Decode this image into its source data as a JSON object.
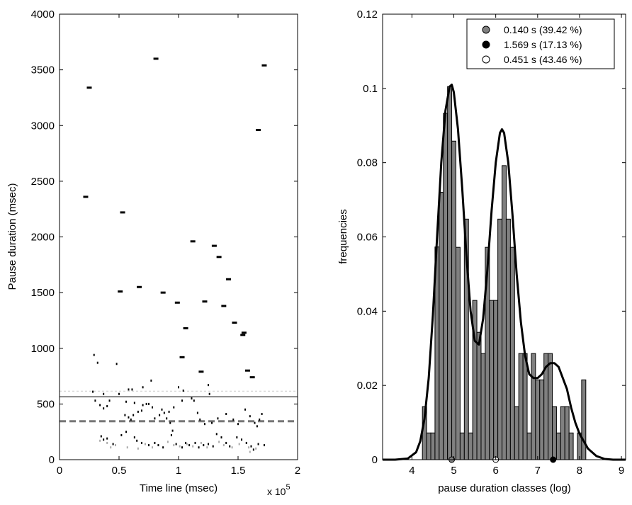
{
  "chart_data": [
    {
      "type": "scatter",
      "title": "",
      "xlabel": "Time line (msec)",
      "ylabel": "Pause duration (msec)",
      "x_exponent_label": "x 10",
      "x_exponent_power": "5",
      "xlim": [
        0,
        2
      ],
      "ylim": [
        0,
        4000
      ],
      "xticks": [
        0,
        0.5,
        1,
        1.5,
        2
      ],
      "xtick_labels": [
        "0",
        "0.5",
        "1",
        "1.5",
        "2"
      ],
      "yticks": [
        0,
        500,
        1000,
        1500,
        2000,
        2500,
        3000,
        3500,
        4000
      ],
      "ytick_labels": [
        "0",
        "500",
        "1000",
        "1500",
        "2000",
        "2500",
        "3000",
        "3500",
        "4000"
      ],
      "grid": false,
      "reference_lines": [
        {
          "style": "solid",
          "color": "#000000",
          "y": 565
        },
        {
          "style": "dashed",
          "color": "#777777",
          "y": 345
        },
        {
          "style": "dotted",
          "color": "#cccccc",
          "y": 615
        }
      ],
      "series": [
        {
          "color": "#000000",
          "points": [
            {
              "x": 0.22,
              "y": 2360
            },
            {
              "x": 0.25,
              "y": 3340
            },
            {
              "x": 0.53,
              "y": 2220
            },
            {
              "x": 0.81,
              "y": 3600
            },
            {
              "x": 1.67,
              "y": 2960
            },
            {
              "x": 1.72,
              "y": 3540
            },
            {
              "x": 1.12,
              "y": 1960
            },
            {
              "x": 1.3,
              "y": 1920
            },
            {
              "x": 1.34,
              "y": 1820
            },
            {
              "x": 1.42,
              "y": 1620
            },
            {
              "x": 0.51,
              "y": 1510
            },
            {
              "x": 0.67,
              "y": 1550
            },
            {
              "x": 0.87,
              "y": 1500
            },
            {
              "x": 0.99,
              "y": 1410
            },
            {
              "x": 1.22,
              "y": 1420
            },
            {
              "x": 1.38,
              "y": 1380
            },
            {
              "x": 1.47,
              "y": 1230
            },
            {
              "x": 1.06,
              "y": 1180
            },
            {
              "x": 1.54,
              "y": 1120
            },
            {
              "x": 1.55,
              "y": 1140
            },
            {
              "x": 1.03,
              "y": 920
            },
            {
              "x": 1.19,
              "y": 790
            },
            {
              "x": 1.58,
              "y": 800
            },
            {
              "x": 1.62,
              "y": 740
            }
          ]
        },
        {
          "color": "#000000",
          "points": [
            {
              "x": 0.29,
              "y": 940
            },
            {
              "x": 0.32,
              "y": 870
            },
            {
              "x": 0.48,
              "y": 860
            },
            {
              "x": 0.28,
              "y": 610
            },
            {
              "x": 0.37,
              "y": 590
            },
            {
              "x": 0.58,
              "y": 630
            },
            {
              "x": 0.61,
              "y": 630
            },
            {
              "x": 0.7,
              "y": 650
            },
            {
              "x": 0.77,
              "y": 710
            },
            {
              "x": 1.0,
              "y": 650
            },
            {
              "x": 1.04,
              "y": 620
            },
            {
              "x": 1.25,
              "y": 670
            },
            {
              "x": 1.26,
              "y": 590
            },
            {
              "x": 0.3,
              "y": 530
            },
            {
              "x": 0.34,
              "y": 490
            },
            {
              "x": 0.37,
              "y": 460
            },
            {
              "x": 0.4,
              "y": 480
            },
            {
              "x": 0.42,
              "y": 530
            },
            {
              "x": 0.5,
              "y": 590
            },
            {
              "x": 0.56,
              "y": 520
            },
            {
              "x": 0.63,
              "y": 510
            },
            {
              "x": 0.7,
              "y": 490
            },
            {
              "x": 0.73,
              "y": 500
            },
            {
              "x": 0.75,
              "y": 500
            },
            {
              "x": 0.78,
              "y": 470
            },
            {
              "x": 0.86,
              "y": 450
            },
            {
              "x": 0.88,
              "y": 420
            },
            {
              "x": 0.92,
              "y": 430
            },
            {
              "x": 0.96,
              "y": 470
            },
            {
              "x": 1.03,
              "y": 530
            },
            {
              "x": 1.11,
              "y": 550
            },
            {
              "x": 1.13,
              "y": 530
            },
            {
              "x": 0.55,
              "y": 400
            },
            {
              "x": 0.58,
              "y": 380
            },
            {
              "x": 0.6,
              "y": 360
            },
            {
              "x": 0.62,
              "y": 400
            },
            {
              "x": 0.66,
              "y": 430
            },
            {
              "x": 0.69,
              "y": 440
            },
            {
              "x": 0.8,
              "y": 370
            },
            {
              "x": 0.84,
              "y": 400
            },
            {
              "x": 0.9,
              "y": 370
            },
            {
              "x": 0.93,
              "y": 330
            },
            {
              "x": 0.95,
              "y": 260
            },
            {
              "x": 0.94,
              "y": 220
            },
            {
              "x": 1.16,
              "y": 420
            },
            {
              "x": 1.18,
              "y": 360
            },
            {
              "x": 1.22,
              "y": 320
            },
            {
              "x": 1.28,
              "y": 330
            },
            {
              "x": 1.33,
              "y": 370
            },
            {
              "x": 1.4,
              "y": 410
            },
            {
              "x": 1.46,
              "y": 360
            },
            {
              "x": 1.5,
              "y": 320
            },
            {
              "x": 1.56,
              "y": 450
            },
            {
              "x": 1.6,
              "y": 390
            },
            {
              "x": 1.64,
              "y": 330
            },
            {
              "x": 1.66,
              "y": 300
            },
            {
              "x": 1.68,
              "y": 360
            },
            {
              "x": 1.7,
              "y": 410
            },
            {
              "x": 0.35,
              "y": 210
            },
            {
              "x": 0.37,
              "y": 180
            },
            {
              "x": 0.4,
              "y": 190
            },
            {
              "x": 0.45,
              "y": 140
            },
            {
              "x": 0.52,
              "y": 220
            },
            {
              "x": 0.56,
              "y": 250
            },
            {
              "x": 0.63,
              "y": 200
            },
            {
              "x": 0.65,
              "y": 170
            },
            {
              "x": 0.69,
              "y": 150
            },
            {
              "x": 0.75,
              "y": 130
            },
            {
              "x": 0.8,
              "y": 150
            },
            {
              "x": 0.83,
              "y": 130
            },
            {
              "x": 0.87,
              "y": 110
            },
            {
              "x": 0.98,
              "y": 140
            },
            {
              "x": 1.03,
              "y": 110
            },
            {
              "x": 1.06,
              "y": 150
            },
            {
              "x": 1.09,
              "y": 130
            },
            {
              "x": 1.14,
              "y": 150
            },
            {
              "x": 1.17,
              "y": 110
            },
            {
              "x": 1.21,
              "y": 130
            },
            {
              "x": 1.25,
              "y": 140
            },
            {
              "x": 1.29,
              "y": 120
            },
            {
              "x": 1.32,
              "y": 230
            },
            {
              "x": 1.36,
              "y": 200
            },
            {
              "x": 1.4,
              "y": 150
            },
            {
              "x": 1.43,
              "y": 120
            },
            {
              "x": 1.49,
              "y": 200
            },
            {
              "x": 1.53,
              "y": 180
            },
            {
              "x": 1.57,
              "y": 150
            },
            {
              "x": 1.61,
              "y": 120
            },
            {
              "x": 1.63,
              "y": 90
            },
            {
              "x": 1.67,
              "y": 140
            },
            {
              "x": 1.72,
              "y": 130
            }
          ]
        },
        {
          "color": "#aaaaaa",
          "points": [
            {
              "x": 0.4,
              "y": 150
            },
            {
              "x": 0.43,
              "y": 110
            },
            {
              "x": 0.47,
              "y": 130
            },
            {
              "x": 0.57,
              "y": 110
            },
            {
              "x": 0.66,
              "y": 100
            },
            {
              "x": 0.72,
              "y": 140
            },
            {
              "x": 0.78,
              "y": 110
            },
            {
              "x": 0.91,
              "y": 160
            },
            {
              "x": 0.96,
              "y": 130
            },
            {
              "x": 1.01,
              "y": 120
            },
            {
              "x": 1.07,
              "y": 140
            },
            {
              "x": 1.12,
              "y": 120
            },
            {
              "x": 1.19,
              "y": 150
            },
            {
              "x": 1.24,
              "y": 110
            },
            {
              "x": 1.34,
              "y": 160
            },
            {
              "x": 1.38,
              "y": 130
            },
            {
              "x": 1.45,
              "y": 110
            },
            {
              "x": 1.51,
              "y": 140
            },
            {
              "x": 1.59,
              "y": 110
            },
            {
              "x": 1.65,
              "y": 100
            },
            {
              "x": 1.6,
              "y": 70
            },
            {
              "x": 0.34,
              "y": 170
            }
          ]
        }
      ]
    },
    {
      "type": "bar",
      "title": "",
      "xlabel": "pause duration classes (log)",
      "ylabel": "frequencies",
      "xlim": [
        3.3,
        9.1
      ],
      "ylim": [
        0,
        0.12
      ],
      "xticks": [
        4,
        5,
        6,
        7,
        8,
        9
      ],
      "xtick_labels": [
        "4",
        "5",
        "6",
        "7",
        "8",
        "9"
      ],
      "yticks": [
        0,
        0.02,
        0.04,
        0.06,
        0.08,
        0.1,
        0.12
      ],
      "ytick_labels": [
        "0",
        "0.02",
        "0.04",
        "0.06",
        "0.08",
        "0.1",
        "0.12"
      ],
      "grid": false,
      "bar_width": 0.1,
      "bar_color": "#808080",
      "bars": [
        {
          "x": 4.3,
          "y": 0.0143
        },
        {
          "x": 4.4,
          "y": 0.0072
        },
        {
          "x": 4.5,
          "y": 0.0072
        },
        {
          "x": 4.6,
          "y": 0.0573
        },
        {
          "x": 4.7,
          "y": 0.072
        },
        {
          "x": 4.8,
          "y": 0.0933
        },
        {
          "x": 4.9,
          "y": 0.1005
        },
        {
          "x": 5.0,
          "y": 0.0858
        },
        {
          "x": 5.1,
          "y": 0.0572
        },
        {
          "x": 5.2,
          "y": 0.0072
        },
        {
          "x": 5.3,
          "y": 0.0648
        },
        {
          "x": 5.4,
          "y": 0.0072
        },
        {
          "x": 5.5,
          "y": 0.0429
        },
        {
          "x": 5.6,
          "y": 0.0343
        },
        {
          "x": 5.7,
          "y": 0.0286
        },
        {
          "x": 5.8,
          "y": 0.0572
        },
        {
          "x": 5.9,
          "y": 0.0429
        },
        {
          "x": 6.0,
          "y": 0.0429
        },
        {
          "x": 6.1,
          "y": 0.0648
        },
        {
          "x": 6.2,
          "y": 0.0792
        },
        {
          "x": 6.3,
          "y": 0.0648
        },
        {
          "x": 6.4,
          "y": 0.0572
        },
        {
          "x": 6.5,
          "y": 0.0143
        },
        {
          "x": 6.6,
          "y": 0.0286
        },
        {
          "x": 6.7,
          "y": 0.0286
        },
        {
          "x": 6.8,
          "y": 0.0072
        },
        {
          "x": 6.9,
          "y": 0.0286
        },
        {
          "x": 7.0,
          "y": 0.0215
        },
        {
          "x": 7.1,
          "y": 0.0215
        },
        {
          "x": 7.2,
          "y": 0.0286
        },
        {
          "x": 7.3,
          "y": 0.0286
        },
        {
          "x": 7.4,
          "y": 0.0143
        },
        {
          "x": 7.5,
          "y": 0.0072
        },
        {
          "x": 7.6,
          "y": 0.0143
        },
        {
          "x": 7.7,
          "y": 0.0143
        },
        {
          "x": 7.8,
          "y": 0.0072
        },
        {
          "x": 8.0,
          "y": 0.0072
        },
        {
          "x": 8.1,
          "y": 0.0215
        }
      ],
      "density_curve": {
        "color": "#000000",
        "x": [
          3.3,
          3.6,
          3.9,
          4.1,
          4.2,
          4.3,
          4.4,
          4.5,
          4.6,
          4.7,
          4.8,
          4.9,
          4.95,
          5.0,
          5.1,
          5.2,
          5.3,
          5.4,
          5.5,
          5.6,
          5.7,
          5.8,
          5.9,
          6.0,
          6.1,
          6.15,
          6.2,
          6.3,
          6.4,
          6.5,
          6.6,
          6.7,
          6.8,
          6.9,
          7.0,
          7.1,
          7.2,
          7.3,
          7.4,
          7.5,
          7.6,
          7.7,
          7.8,
          7.9,
          8.0,
          8.2,
          8.4,
          8.6,
          8.8,
          9.1
        ],
        "y": [
          0,
          0,
          0.0003,
          0.002,
          0.005,
          0.011,
          0.022,
          0.039,
          0.06,
          0.08,
          0.094,
          0.1005,
          0.101,
          0.099,
          0.089,
          0.073,
          0.055,
          0.04,
          0.032,
          0.031,
          0.038,
          0.051,
          0.067,
          0.08,
          0.088,
          0.089,
          0.088,
          0.08,
          0.066,
          0.05,
          0.037,
          0.028,
          0.023,
          0.022,
          0.022,
          0.023,
          0.025,
          0.026,
          0.026,
          0.025,
          0.022,
          0.019,
          0.014,
          0.01,
          0.007,
          0.003,
          0.001,
          0.0002,
          0,
          0
        ]
      },
      "component_markers": [
        {
          "x": 4.95,
          "color": "#808080"
        },
        {
          "x": 6.0,
          "color": "#ffffff"
        },
        {
          "x": 7.37,
          "color": "#000000"
        }
      ],
      "legend_position": "top-right",
      "legend": [
        {
          "label": "0.140 s (39.42 %)",
          "color": "#808080"
        },
        {
          "label": "1.569 s (17.13 %)",
          "color": "#000000"
        },
        {
          "label": "0.451 s (43.46 %)",
          "color": "#ffffff"
        }
      ]
    }
  ]
}
